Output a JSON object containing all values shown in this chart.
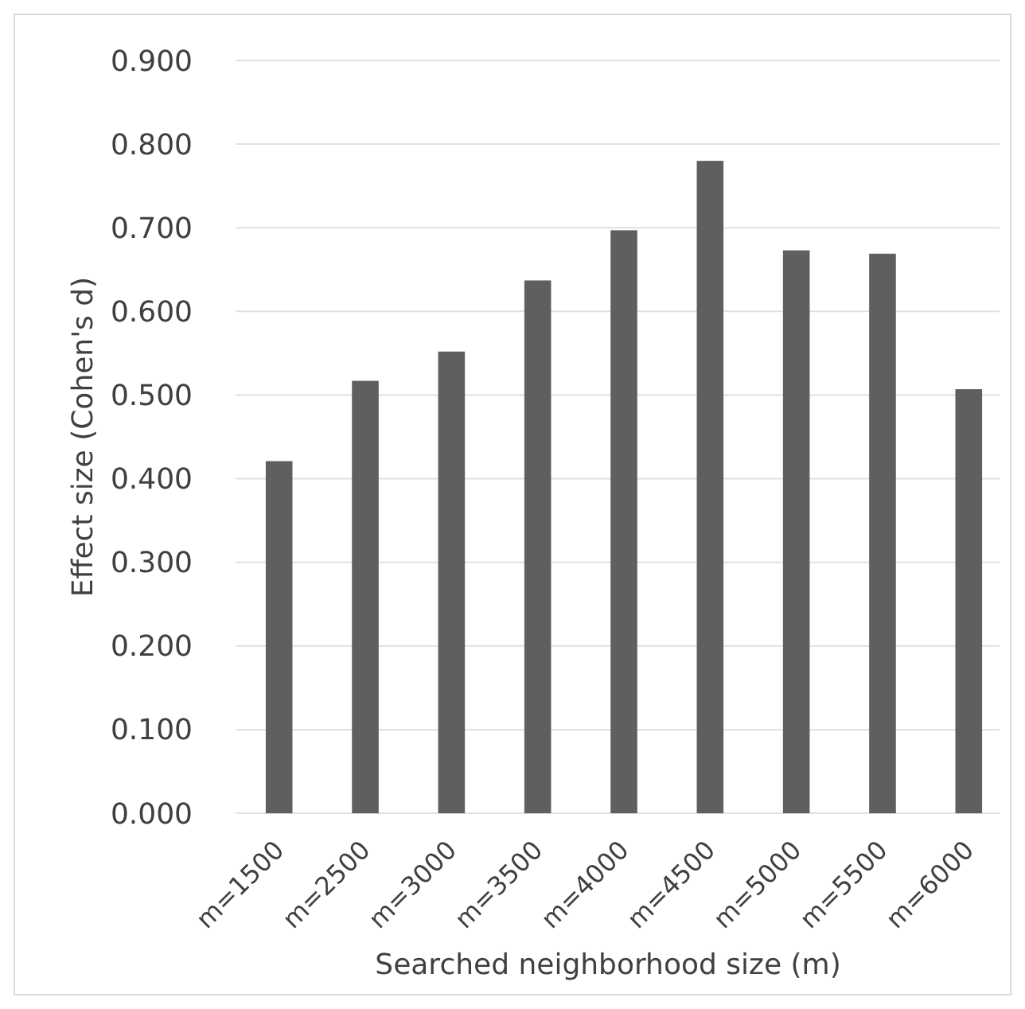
{
  "chart_data": {
    "type": "bar",
    "xlabel": "Searched neighborhood size (m)",
    "ylabel": "Effect size (Cohen's d)",
    "categories": [
      "m=1500",
      "m=2500",
      "m=3000",
      "m=3500",
      "m=4000",
      "m=4500",
      "m=5000",
      "m=5500",
      "m=6000"
    ],
    "values": [
      0.421,
      0.517,
      0.552,
      0.637,
      0.697,
      0.78,
      0.673,
      0.669,
      0.507
    ],
    "color": "#5f5f5f",
    "ylim": [
      0,
      0.9
    ],
    "yticks": [
      {
        "value": 0,
        "label": "0.000"
      },
      {
        "value": 0.1,
        "label": "0.100"
      },
      {
        "value": 0.2,
        "label": "0.200"
      },
      {
        "value": 0.3,
        "label": "0.300"
      },
      {
        "value": 0.4,
        "label": "0.400"
      },
      {
        "value": 0.5,
        "label": "0.500"
      },
      {
        "value": 0.6,
        "label": "0.600"
      },
      {
        "value": 0.7,
        "label": "0.700"
      },
      {
        "value": 0.8,
        "label": "0.800"
      },
      {
        "value": 0.9,
        "label": "0.900"
      }
    ],
    "grid": "y"
  }
}
